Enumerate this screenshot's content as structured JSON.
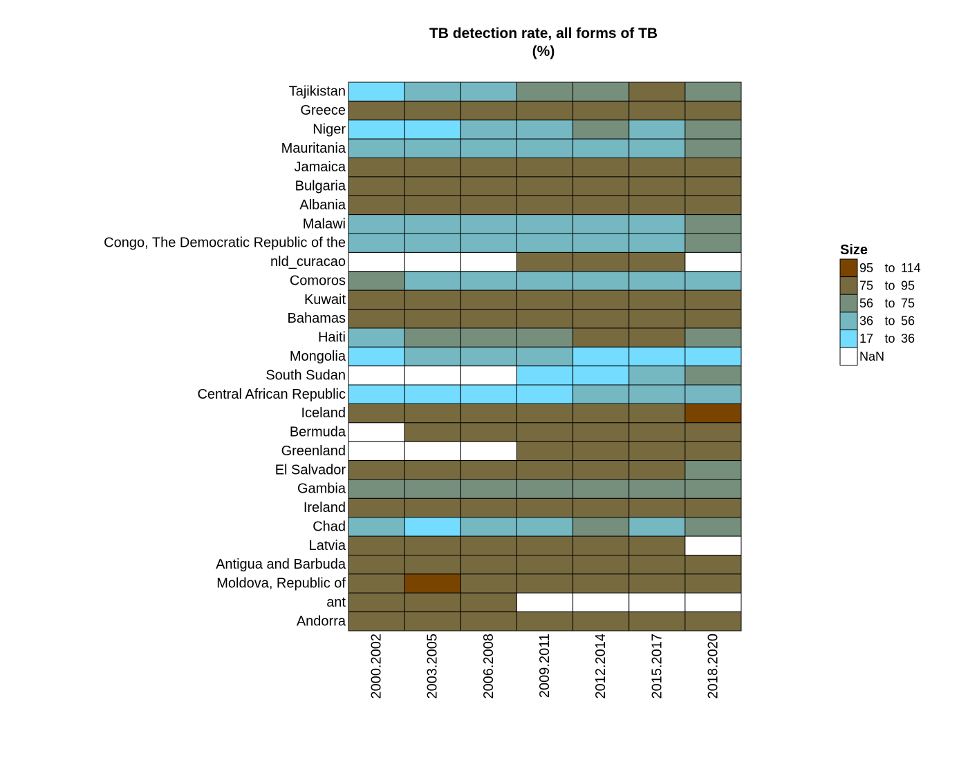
{
  "chart_data": {
    "type": "heatmap",
    "title_line1": "TB detection rate, all forms of TB",
    "title_line2": "(%)",
    "x_categories": [
      "2000.2002",
      "2003.2005",
      "2006.2008",
      "2009.2011",
      "2012.2014",
      "2015.2017",
      "2018.2020"
    ],
    "y_categories": [
      "Tajikistan",
      "Greece",
      "Niger",
      "Mauritania",
      "Jamaica",
      "Bulgaria",
      "Albania",
      "Malawi",
      "Congo, The Democratic Republic of the",
      "nld_curacao",
      "Comoros",
      "Kuwait",
      "Bahamas",
      "Haiti",
      "Mongolia",
      "South Sudan",
      "Central African Republic",
      "Iceland",
      "Bermuda",
      "Greenland",
      "El Salvador",
      "Gambia",
      "Ireland",
      "Chad",
      "Latvia",
      "Antigua and Barbuda",
      "Moldova, Republic of",
      "ant",
      "Andorra"
    ],
    "bin_colors": {
      "0": "#ffffff",
      "1": "#74dcfe",
      "2": "#75b8c2",
      "3": "#768f7d",
      "4": "#776a3f",
      "5": "#794300"
    },
    "cells": [
      [
        1,
        2,
        2,
        3,
        3,
        4,
        3
      ],
      [
        4,
        4,
        4,
        4,
        4,
        4,
        4
      ],
      [
        1,
        1,
        2,
        2,
        3,
        2,
        3
      ],
      [
        2,
        2,
        2,
        2,
        2,
        2,
        3
      ],
      [
        4,
        4,
        4,
        4,
        4,
        4,
        4
      ],
      [
        4,
        4,
        4,
        4,
        4,
        4,
        4
      ],
      [
        4,
        4,
        4,
        4,
        4,
        4,
        4
      ],
      [
        2,
        2,
        2,
        2,
        2,
        2,
        3
      ],
      [
        2,
        2,
        2,
        2,
        2,
        2,
        3
      ],
      [
        0,
        0,
        0,
        4,
        4,
        4,
        0
      ],
      [
        3,
        2,
        2,
        2,
        2,
        2,
        2
      ],
      [
        4,
        4,
        4,
        4,
        4,
        4,
        4
      ],
      [
        4,
        4,
        4,
        4,
        4,
        4,
        4
      ],
      [
        2,
        3,
        3,
        3,
        4,
        4,
        3
      ],
      [
        1,
        2,
        2,
        2,
        1,
        1,
        1
      ],
      [
        0,
        0,
        0,
        1,
        1,
        2,
        3
      ],
      [
        1,
        1,
        1,
        1,
        2,
        2,
        2
      ],
      [
        4,
        4,
        4,
        4,
        4,
        4,
        5
      ],
      [
        0,
        4,
        4,
        4,
        4,
        4,
        4
      ],
      [
        0,
        0,
        0,
        4,
        4,
        4,
        4
      ],
      [
        4,
        4,
        4,
        4,
        4,
        4,
        3
      ],
      [
        3,
        3,
        3,
        3,
        3,
        3,
        3
      ],
      [
        4,
        4,
        4,
        4,
        4,
        4,
        4
      ],
      [
        2,
        1,
        2,
        2,
        3,
        2,
        3
      ],
      [
        4,
        4,
        4,
        4,
        4,
        4,
        0
      ],
      [
        4,
        4,
        4,
        4,
        4,
        4,
        4
      ],
      [
        4,
        5,
        4,
        4,
        4,
        4,
        4
      ],
      [
        4,
        4,
        4,
        0,
        0,
        0,
        0
      ],
      [
        4,
        4,
        4,
        4,
        4,
        4,
        4
      ]
    ],
    "legend": {
      "title": "Size",
      "placement": "right",
      "items": [
        {
          "bin": 5,
          "low": "95",
          "sep": "to",
          "high": "114",
          "color": "#794300"
        },
        {
          "bin": 4,
          "low": "75",
          "sep": "to",
          "high": "95",
          "color": "#776a3f"
        },
        {
          "bin": 3,
          "low": "56",
          "sep": "to",
          "high": "75",
          "color": "#768f7d"
        },
        {
          "bin": 2,
          "low": "36",
          "sep": "to",
          "high": "56",
          "color": "#75b8c2"
        },
        {
          "bin": 1,
          "low": "17",
          "sep": "to",
          "high": "36",
          "color": "#74dcfe"
        },
        {
          "bin": 0,
          "label": "NaN",
          "color": "#ffffff"
        }
      ]
    },
    "grid": false
  }
}
